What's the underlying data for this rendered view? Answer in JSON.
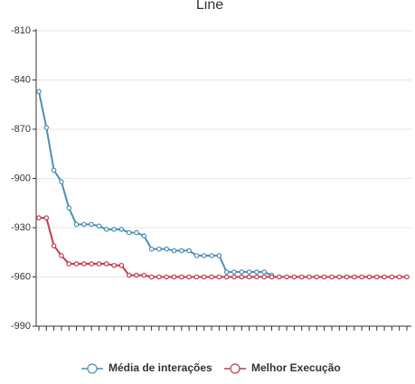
{
  "chart_data": {
    "type": "line",
    "title": "Line",
    "categories": [
      null,
      null,
      null,
      null,
      null,
      null,
      null,
      null,
      null,
      null,
      null,
      null,
      null,
      null,
      null,
      null,
      null,
      null,
      null,
      null,
      null,
      null,
      null,
      null,
      null,
      null,
      null,
      null,
      null,
      null,
      null,
      null,
      null,
      null,
      null,
      null,
      null,
      null,
      null,
      null,
      null,
      null,
      null,
      null,
      null,
      null,
      null,
      null,
      null,
      null
    ],
    "series": [
      {
        "name": "Média de interações",
        "color": "#4a8fb8",
        "values": [
          -847,
          -869,
          -895,
          -902,
          -918,
          -928,
          -928,
          -928,
          -929,
          -931,
          -931,
          -931,
          -933,
          -933,
          -935,
          -943,
          -943,
          -943,
          -944,
          -944,
          -944,
          -947,
          -947,
          -947,
          -947,
          -957,
          -957,
          -957,
          -957,
          -957,
          -957,
          -959,
          null,
          null,
          null,
          null,
          null,
          null,
          null,
          null,
          null,
          null,
          null,
          null,
          null,
          null,
          null,
          null,
          null,
          null
        ]
      },
      {
        "name": "Melhor Execução",
        "color": "#c23a51",
        "values": [
          -924,
          -924,
          -941,
          -947,
          -952,
          -952,
          -952,
          -952,
          -952,
          -952,
          -953,
          -953,
          -959,
          -959,
          -959,
          -960,
          -960,
          -960,
          -960,
          -960,
          -960,
          -960,
          -960,
          -960,
          -960,
          -960,
          -960,
          -960,
          -960,
          -960,
          -960,
          -960,
          -960,
          -960,
          -960,
          -960,
          -960,
          -960,
          -960,
          -960,
          -960,
          -960,
          -960,
          -960,
          -960,
          -960,
          -960,
          -960,
          -960,
          -960
        ]
      }
    ],
    "ylim": [
      -990,
      -810
    ],
    "yticks": [
      -990,
      -960,
      -930,
      -900,
      -870,
      -840,
      -810
    ],
    "grid": true,
    "legend": "bottom"
  }
}
